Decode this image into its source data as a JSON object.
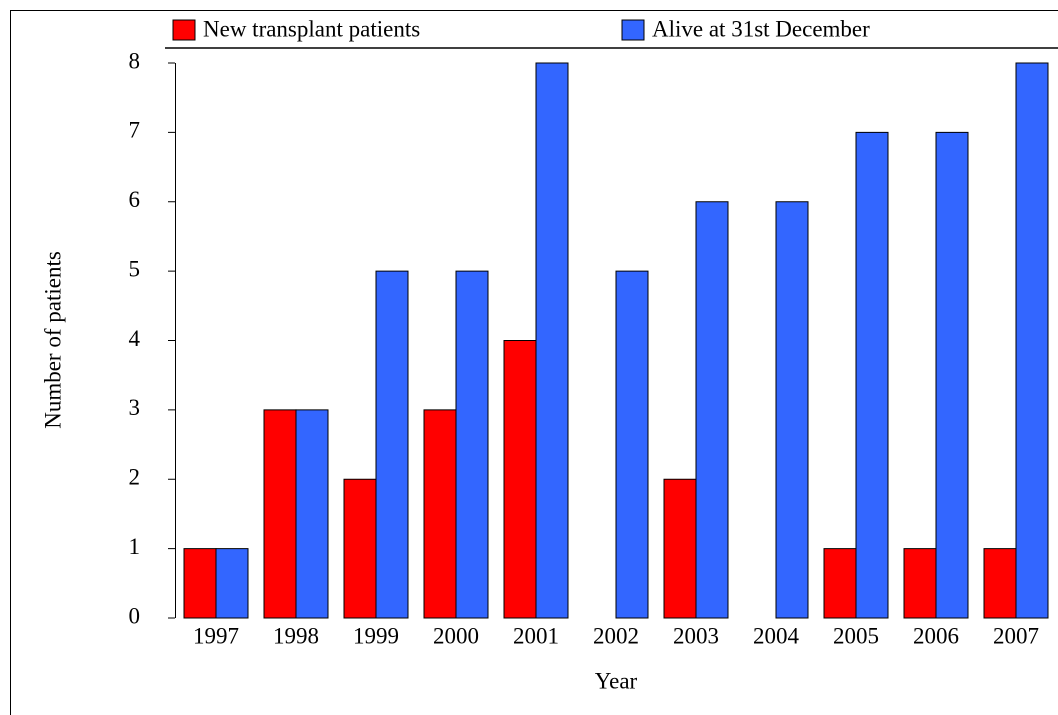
{
  "chart_data": {
    "type": "bar",
    "x_label": "Year",
    "y_label": "Number of patients",
    "categories": [
      "1997",
      "1998",
      "1999",
      "2000",
      "2001",
      "2002",
      "2003",
      "2004",
      "2005",
      "2006",
      "2007"
    ],
    "series": [
      {
        "name": "New transplant patients",
        "color": "#ff0000",
        "values": [
          1,
          3,
          2,
          3,
          4,
          0,
          2,
          0,
          1,
          1,
          1
        ]
      },
      {
        "name": "Alive at 31st December",
        "color": "#3366ff",
        "values": [
          1,
          3,
          5,
          5,
          8,
          5,
          6,
          6,
          7,
          7,
          8
        ]
      }
    ],
    "ylim": [
      0,
      8
    ],
    "yticks": [
      0,
      1,
      2,
      3,
      4,
      5,
      6,
      7,
      8
    ],
    "grid": false
  }
}
